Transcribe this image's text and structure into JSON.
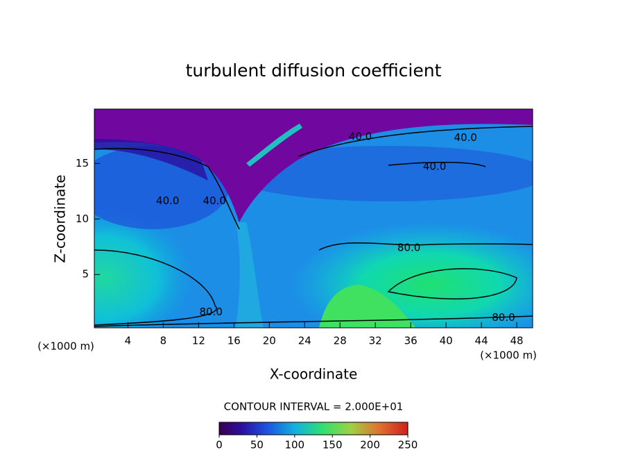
{
  "chart_data": {
    "type": "contour",
    "title": "turbulent diffusion coefficient",
    "x_label": "X-coordinate",
    "y_label": "Z-coordinate",
    "x_unit": "(×1000 m)",
    "y_unit": "(×1000 m)",
    "xlim": [
      0.2,
      49.8
    ],
    "ylim": [
      0.2,
      19.9
    ],
    "xticks": [
      4,
      8,
      12,
      16,
      20,
      24,
      28,
      32,
      36,
      40,
      44,
      48
    ],
    "yticks": [
      5,
      10,
      15
    ],
    "contour_interval_label": "CONTOUR INTERVAL = 2.000E+01",
    "contour_labels": [
      {
        "x": 30.3,
        "y": 17.4,
        "value": 40,
        "label": "40.0"
      },
      {
        "x": 42.2,
        "y": 17.3,
        "value": 40,
        "label": "40.0"
      },
      {
        "x": 38.7,
        "y": 14.7,
        "value": 40,
        "label": "40.0"
      },
      {
        "x": 8.5,
        "y": 11.6,
        "value": 40,
        "label": "40.0"
      },
      {
        "x": 13.8,
        "y": 11.6,
        "value": 40,
        "label": "40.0"
      },
      {
        "x": 35.8,
        "y": 7.4,
        "value": 80,
        "label": "80.0"
      },
      {
        "x": 13.4,
        "y": 1.6,
        "value": 80,
        "label": "80.0"
      },
      {
        "x": 46.5,
        "y": 1.1,
        "value": 80,
        "label": "80.0"
      }
    ],
    "colorbar": {
      "lim": [
        0,
        250
      ],
      "ticks": [
        0,
        50,
        100,
        150,
        200,
        250
      ]
    }
  }
}
